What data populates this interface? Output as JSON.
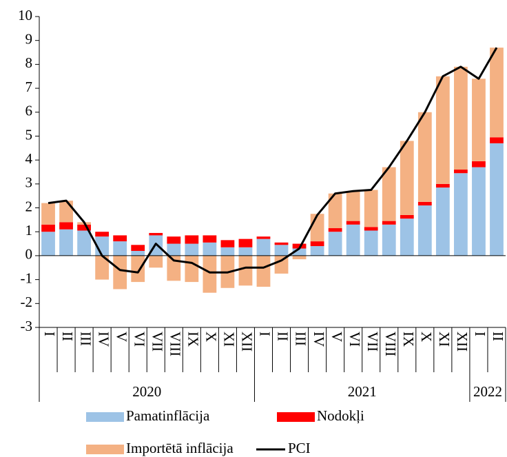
{
  "chart_data": {
    "type": "bar",
    "stacked": true,
    "categories": [
      "I",
      "II",
      "III",
      "IV",
      "V",
      "VI",
      "VII",
      "VIII",
      "IX",
      "X",
      "XI",
      "XII",
      "I",
      "II",
      "III",
      "IV",
      "V",
      "VI",
      "VII",
      "VIII",
      "IX",
      "X",
      "XI",
      "XII",
      "I",
      "II"
    ],
    "years": [
      "2020",
      "2021",
      "2022"
    ],
    "ylim": [
      -3,
      10
    ],
    "yticks": [
      -3,
      -2,
      -1,
      0,
      1,
      2,
      3,
      4,
      5,
      6,
      7,
      8,
      9,
      10
    ],
    "grid": false,
    "series": [
      {
        "name": "Pamatinflācija",
        "color": "#9dc3e6",
        "values": [
          1.0,
          1.1,
          1.05,
          0.8,
          0.6,
          0.2,
          0.85,
          0.5,
          0.5,
          0.55,
          0.35,
          0.35,
          0.7,
          0.45,
          0.3,
          0.4,
          1.0,
          1.3,
          1.05,
          1.3,
          1.55,
          2.1,
          2.85,
          3.45,
          3.7,
          4.7
        ]
      },
      {
        "name": "Nodokļi",
        "color": "#ff0000",
        "values": [
          0.3,
          0.3,
          0.25,
          0.2,
          0.25,
          0.25,
          0.1,
          0.3,
          0.35,
          0.3,
          0.3,
          0.35,
          0.1,
          0.1,
          0.2,
          0.2,
          0.15,
          0.15,
          0.15,
          0.15,
          0.15,
          0.15,
          0.15,
          0.15,
          0.25,
          0.25
        ]
      },
      {
        "name": "Importētā inflācija",
        "color": "#f4b183",
        "values": [
          0.9,
          0.9,
          0.1,
          -1.0,
          -1.4,
          -1.1,
          -0.5,
          -1.05,
          -1.1,
          -1.55,
          -1.35,
          -1.25,
          -1.3,
          -0.75,
          -0.15,
          1.15,
          1.45,
          1.25,
          1.55,
          2.25,
          3.1,
          3.75,
          4.5,
          4.3,
          3.45,
          3.75
        ]
      },
      {
        "name": "PCI",
        "color": "#000000",
        "type": "line",
        "values": [
          2.2,
          2.3,
          1.4,
          0.0,
          -0.6,
          -0.7,
          0.5,
          -0.2,
          -0.3,
          -0.7,
          -0.7,
          -0.5,
          -0.5,
          -0.2,
          0.3,
          1.7,
          2.6,
          2.7,
          2.75,
          3.7,
          4.8,
          6.0,
          7.5,
          7.9,
          7.4,
          8.7
        ]
      }
    ]
  }
}
